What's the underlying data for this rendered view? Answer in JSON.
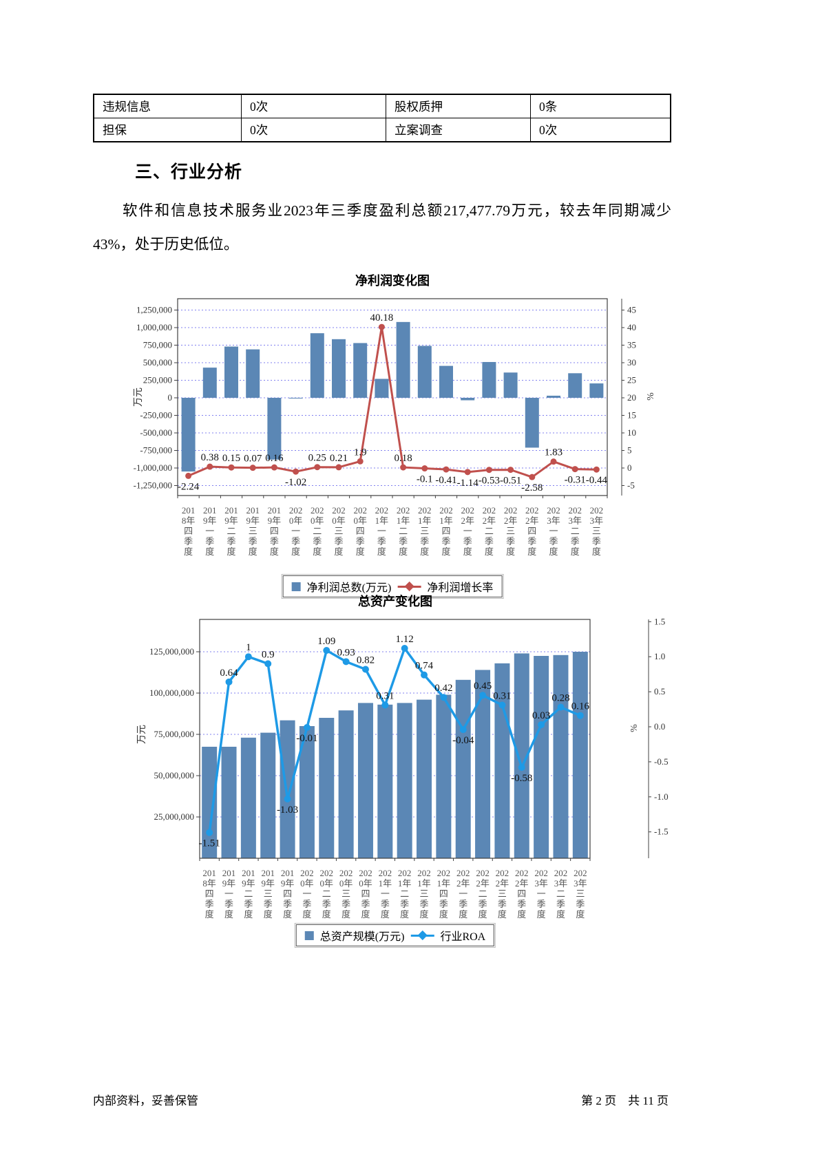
{
  "table": {
    "rows": [
      [
        "违规信息",
        "0次",
        "股权质押",
        "0条"
      ],
      [
        "担保",
        "0次",
        "立案调查",
        "0次"
      ]
    ]
  },
  "section_heading": "三、行业分析",
  "paragraph": "软件和信息技术服务业2023年三季度盈利总额217,477.79万元，较去年同期减少43%，处于历史低位。",
  "chart_data": [
    {
      "type": "bar",
      "title": "净利润变化图",
      "categories": [
        "2018年四季度",
        "2019年一季度",
        "2019年二季度",
        "2019年三季度",
        "2019年四季度",
        "2020年一季度",
        "2020年二季度",
        "2020年三季度",
        "2020年四季度",
        "2021年一季度",
        "2021年二季度",
        "2021年三季度",
        "2021年四季度",
        "2022年一季度",
        "2022年二季度",
        "2022年三季度",
        "2022年四季度",
        "2023年一季度",
        "2023年二季度",
        "2023年三季度"
      ],
      "ylabel_left": "万元",
      "ylabel_right": "%",
      "ylim_left": [
        -1250000,
        1250000
      ],
      "ylim_right": [
        -5,
        45
      ],
      "yticks_left": [
        1250000,
        1000000,
        750000,
        500000,
        250000,
        0,
        -250000,
        -500000,
        -750000,
        -1000000,
        -1250000
      ],
      "yticks_right": [
        45,
        40,
        35,
        30,
        25,
        20,
        15,
        10,
        5,
        0,
        -5
      ],
      "grid": true,
      "legend_position": "bottom",
      "series": [
        {
          "name": "净利润总数(万元)",
          "type": "bar",
          "axis": "left",
          "color": "#5B87B5",
          "values": [
            -1050000,
            430000,
            730000,
            690000,
            -880000,
            -10000,
            920000,
            835000,
            780000,
            270000,
            1080000,
            740000,
            455000,
            -35000,
            510000,
            360000,
            -710000,
            30000,
            350000,
            205000
          ]
        },
        {
          "name": "净利润增长率",
          "type": "line",
          "axis": "right",
          "color": "#C0504D",
          "values": [
            -2.24,
            0.38,
            0.15,
            0.07,
            0.16,
            -1.02,
            0.25,
            0.21,
            1.9,
            40.18,
            0.18,
            -0.1,
            -0.41,
            -1.14,
            -0.53,
            -0.51,
            -2.58,
            1.83,
            -0.31,
            -0.44
          ]
        }
      ]
    },
    {
      "type": "bar",
      "title": "总资产变化图",
      "categories": [
        "2018年四季度",
        "2019年一季度",
        "2019年二季度",
        "2019年三季度",
        "2019年四季度",
        "2020年一季度",
        "2020年二季度",
        "2020年三季度",
        "2020年四季度",
        "2021年一季度",
        "2021年二季度",
        "2021年三季度",
        "2021年四季度",
        "2022年一季度",
        "2022年二季度",
        "2022年三季度",
        "2022年四季度",
        "2023年一季度",
        "2023年二季度",
        "2023年三季度"
      ],
      "ylabel_left": "万元",
      "ylabel_right": "%",
      "ylim_left": [
        0,
        137500000
      ],
      "ylim_right": [
        -1.5,
        1.5
      ],
      "yticks_left": [
        125000000,
        100000000,
        75000000,
        50000000,
        25000000
      ],
      "yticks_right": [
        1.5,
        1.0,
        0.5,
        0.0,
        -0.5,
        -1.0,
        -1.5
      ],
      "grid": true,
      "legend_position": "bottom",
      "series": [
        {
          "name": "总资产规模(万元)",
          "type": "bar",
          "axis": "left",
          "color": "#5B87B5",
          "values": [
            67500000,
            67500000,
            73000000,
            76000000,
            83500000,
            80000000,
            85000000,
            89500000,
            94000000,
            93000000,
            94000000,
            96000000,
            99000000,
            108000000,
            114000000,
            118000000,
            124000000,
            122500000,
            123000000,
            125000000
          ]
        },
        {
          "name": "行业ROA",
          "type": "line",
          "axis": "right",
          "color": "#1E9AE6",
          "values": [
            -1.51,
            0.64,
            1,
            0.9,
            -1.03,
            -0.01,
            1.09,
            0.93,
            0.82,
            0.31,
            1.12,
            0.74,
            0.42,
            -0.04,
            0.45,
            0.31,
            -0.58,
            0.03,
            0.28,
            0.16
          ]
        }
      ]
    }
  ],
  "colors": {
    "bar": "#5B87B5",
    "line_growth": "#C0504D",
    "line_roa": "#1E9AE6",
    "grid": "#7F7FEF"
  },
  "footer": {
    "left": "内部资料，妥善保管",
    "right": "第 2 页　共 11 页"
  }
}
